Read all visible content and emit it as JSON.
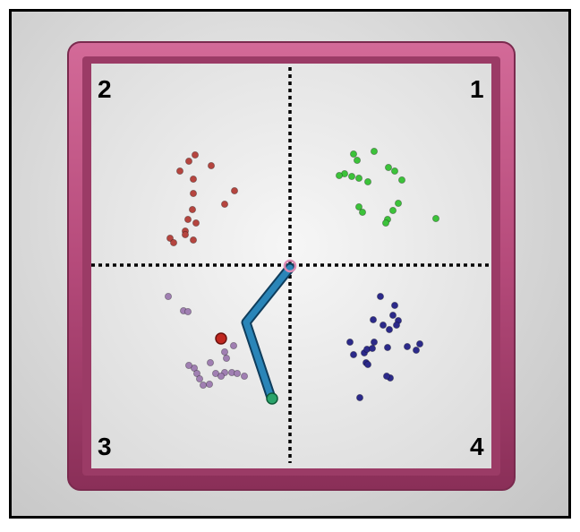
{
  "quadrants": [
    {
      "label": "1",
      "dot_color": "#3cc23a"
    },
    {
      "label": "2",
      "dot_color": "#b5453f"
    },
    {
      "label": "3",
      "dot_color": "#a07fb2"
    },
    {
      "label": "4",
      "dot_color": "#2c2a8a"
    }
  ],
  "colors": {
    "frame": "#b54a7a",
    "arena_floor": "#e9e9e9",
    "divider": "#000000",
    "path": "#1f6fa0",
    "path_end": "#2aa36a",
    "start_ring": "#d98ab2",
    "highlight_dot": "#c0271f"
  },
  "icons": [
    "start-ring-icon",
    "path-end-icon",
    "highlight-dot-icon"
  ]
}
